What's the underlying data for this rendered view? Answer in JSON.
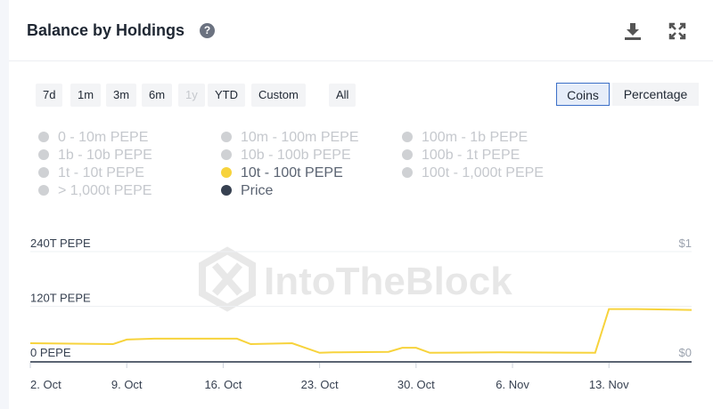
{
  "header": {
    "title": "Balance by Holdings",
    "help_icon": "question-circle-icon",
    "download_icon": "download-icon",
    "expand_icon": "expand-icon"
  },
  "ranges": [
    {
      "label": "7d",
      "disabled": false
    },
    {
      "label": "1m",
      "disabled": false
    },
    {
      "label": "3m",
      "disabled": false
    },
    {
      "label": "6m",
      "disabled": false
    },
    {
      "label": "1y",
      "disabled": true
    },
    {
      "label": "YTD",
      "disabled": false
    },
    {
      "label": "Custom",
      "disabled": false
    },
    {
      "label": "All",
      "disabled": false
    }
  ],
  "modes": {
    "coins": "Coins",
    "percentage": "Percentage",
    "selected": "Coins"
  },
  "legend": [
    {
      "label": "0 - 10m PEPE",
      "active": false
    },
    {
      "label": "1b - 10b PEPE",
      "active": false
    },
    {
      "label": "1t - 10t PEPE",
      "active": false
    },
    {
      "label": "> 1,000t PEPE",
      "active": false
    },
    {
      "label": "10m - 100m PEPE",
      "active": false
    },
    {
      "label": "10b - 100b PEPE",
      "active": false
    },
    {
      "label": "10t - 100t PEPE",
      "active": true,
      "color": "#f7d33c"
    },
    {
      "label": "Price",
      "active": true,
      "color": "#374151"
    },
    {
      "label": "100m - 1b PEPE",
      "active": false
    },
    {
      "label": "100b - 1t PEPE",
      "active": false
    },
    {
      "label": "100t - 1,000t PEPE",
      "active": false
    }
  ],
  "watermark": "IntoTheBlock",
  "chart_data": {
    "type": "line",
    "title": "Balance by Holdings",
    "y_ticks": [
      "0 PEPE",
      "120T PEPE",
      "240T PEPE"
    ],
    "y_tick_values": [
      0,
      120,
      240
    ],
    "ylim": [
      0,
      240
    ],
    "y2_ticks": [
      "$0",
      "$1"
    ],
    "y2lim": [
      0,
      1
    ],
    "x_ticks": [
      "2. Oct",
      "9. Oct",
      "16. Oct",
      "23. Oct",
      "30. Oct",
      "6. Nov",
      "13. Nov"
    ],
    "x_tick_dates": [
      "2023-10-02",
      "2023-10-09",
      "2023-10-16",
      "2023-10-23",
      "2023-10-30",
      "2023-11-06",
      "2023-11-13"
    ],
    "xlim": [
      "2023-10-02",
      "2023-11-19"
    ],
    "grid": true,
    "series": [
      {
        "name": "10t - 100t PEPE",
        "color": "#f7d33c",
        "unit": "T PEPE",
        "points": [
          [
            "2023-10-02",
            39
          ],
          [
            "2023-10-08",
            37
          ],
          [
            "2023-10-09",
            47
          ],
          [
            "2023-10-11",
            49
          ],
          [
            "2023-10-17",
            49
          ],
          [
            "2023-10-18",
            37
          ],
          [
            "2023-10-21",
            39
          ],
          [
            "2023-10-23",
            18
          ],
          [
            "2023-10-24",
            19
          ],
          [
            "2023-10-28",
            20
          ],
          [
            "2023-10-29",
            29
          ],
          [
            "2023-10-30",
            29
          ],
          [
            "2023-10-31",
            18
          ],
          [
            "2023-11-05",
            19
          ],
          [
            "2023-11-12",
            18
          ],
          [
            "2023-11-13",
            114
          ],
          [
            "2023-11-15",
            114
          ],
          [
            "2023-11-19",
            112
          ]
        ]
      }
    ]
  }
}
